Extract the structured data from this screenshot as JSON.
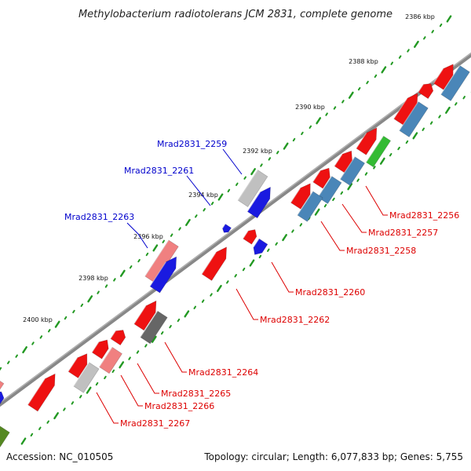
{
  "title": "Methylobacterium radiotolerans JCM 2831, complete genome",
  "footer": {
    "accession": "Accession: NC_010505",
    "summary": "Topology: circular; Length: 6,077,833 bp; Genes: 5,755"
  },
  "colors": {
    "forward_gene": "#ee1111",
    "reverse_gene": "#1a1ae0",
    "steelblue_gene": "#4a86b8",
    "pink_gene": "#f08080",
    "grey_gene": "#c0c0c0",
    "dark_grey_gene": "#666666",
    "green_gene": "#33bb33",
    "olive_gene": "#558822",
    "backbone": "#888888",
    "label_forward": "#dd0000",
    "label_reverse": "#0000cc",
    "dots": "#229922"
  },
  "ticks": [
    {
      "label": "2386 kbp"
    },
    {
      "label": "2388 kbp"
    },
    {
      "label": "2390 kbp"
    },
    {
      "label": "2392 kbp"
    },
    {
      "label": "2394 kbp"
    },
    {
      "label": "2396 kbp"
    },
    {
      "label": "2398 kbp"
    },
    {
      "label": "2400 kbp"
    }
  ],
  "gene_labels": [
    {
      "text": "Mrad2831_2259",
      "strand": "reverse"
    },
    {
      "text": "Mrad2831_2261",
      "strand": "reverse"
    },
    {
      "text": "Mrad2831_2263",
      "strand": "reverse"
    },
    {
      "text": "Mrad2831_2256",
      "strand": "forward"
    },
    {
      "text": "Mrad2831_2257",
      "strand": "forward"
    },
    {
      "text": "Mrad2831_2258",
      "strand": "forward"
    },
    {
      "text": "Mrad2831_2260",
      "strand": "forward"
    },
    {
      "text": "Mrad2831_2262",
      "strand": "forward"
    },
    {
      "text": "Mrad2831_2264",
      "strand": "forward"
    },
    {
      "text": "Mrad2831_2265",
      "strand": "forward"
    },
    {
      "text": "Mrad2831_2266",
      "strand": "forward"
    },
    {
      "text": "Mrad2831_2267",
      "strand": "forward"
    }
  ]
}
